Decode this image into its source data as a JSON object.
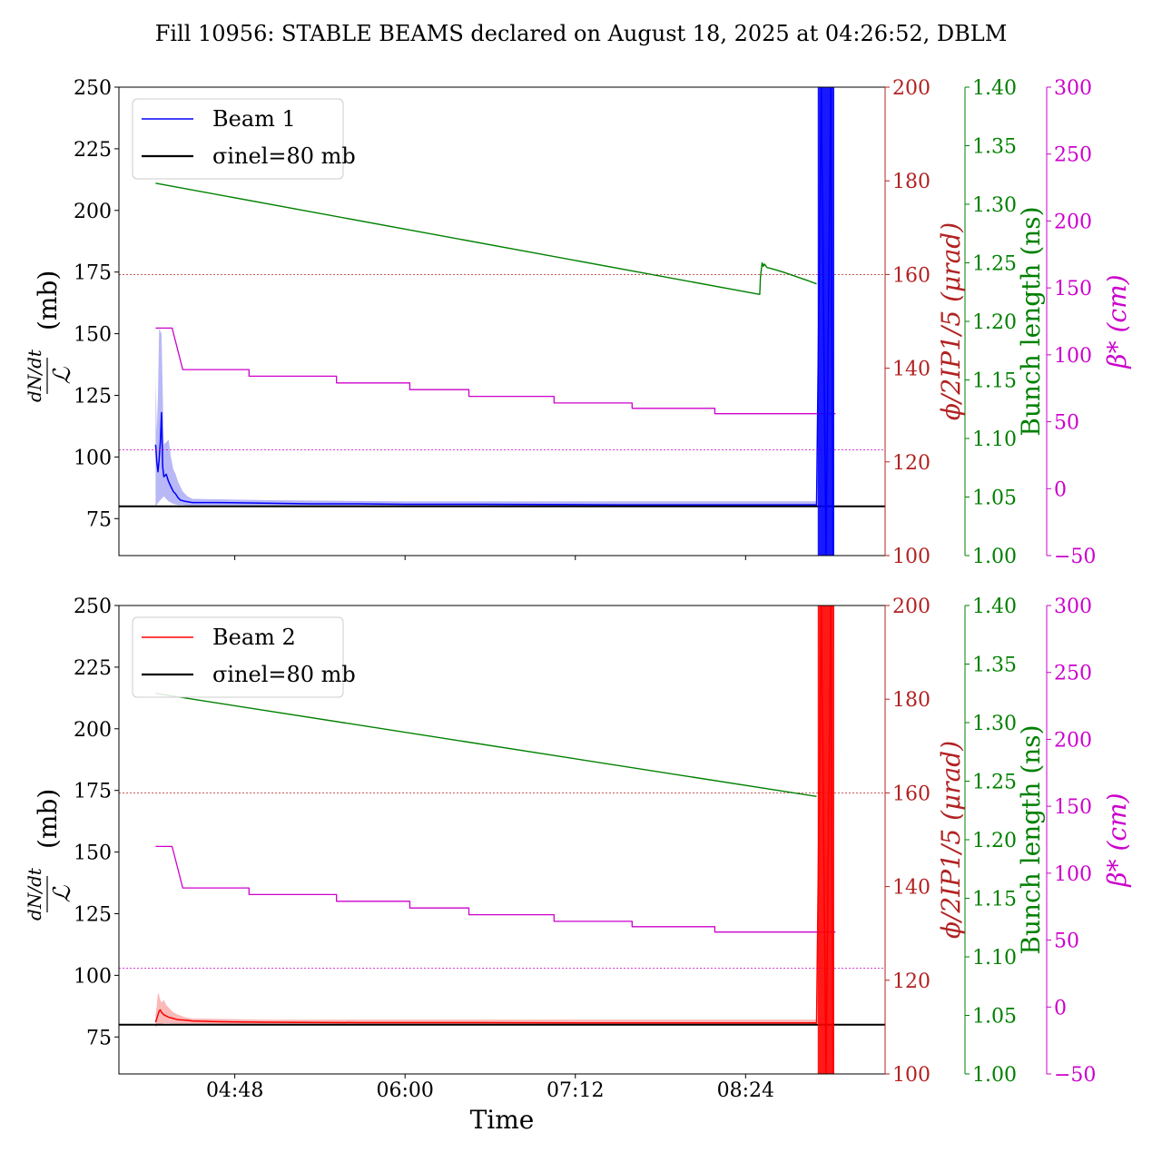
{
  "title": "Fill 10956: STABLE BEAMS declared on August 18, 2025 at 04:26:52, DBLM",
  "xlabel": "Time",
  "x_ticks": [
    "04:48",
    "06:00",
    "07:12",
    "08:24"
  ],
  "colors": {
    "beam1": "#0000ff",
    "beam1_band": "#a6a6f5",
    "beam2": "#ff0000",
    "beam2_band": "#f7a8a8",
    "crossing": "#b22222",
    "bunch": "#008000",
    "beta": "#cc00cc",
    "sigma": "#000000"
  },
  "panels": [
    {
      "beam": "beam1",
      "legend": [
        "Beam 1",
        "σinel=80 mb"
      ],
      "axis_labels": {
        "left_top": "dN/dt",
        "left_bottom": "ℒ",
        "left_unit": "(mb)",
        "crossing": "ϕ/2IP1/5 (μrad)",
        "bunch": "Bunch length (ns)",
        "beta": "β* (cm)"
      },
      "ticks": {
        "left": [
          "75",
          "100",
          "125",
          "150",
          "175",
          "200",
          "225",
          "250"
        ],
        "crossing": [
          "100",
          "120",
          "140",
          "160",
          "180",
          "200"
        ],
        "bunch": [
          "1.00",
          "1.05",
          "1.10",
          "1.15",
          "1.20",
          "1.25",
          "1.30",
          "1.35",
          "1.40"
        ],
        "beta": [
          "−50",
          "0",
          "50",
          "100",
          "150",
          "200",
          "250",
          "300"
        ]
      }
    },
    {
      "beam": "beam2",
      "legend": [
        "Beam 2",
        "σinel=80 mb"
      ],
      "axis_labels": {
        "left_top": "dN/dt",
        "left_bottom": "ℒ",
        "left_unit": "(mb)",
        "crossing": "ϕ/2IP1/5 (μrad)",
        "bunch": "Bunch length (ns)",
        "beta": "β* (cm)"
      },
      "ticks": {
        "left": [
          "75",
          "100",
          "125",
          "150",
          "175",
          "200",
          "225",
          "250"
        ],
        "crossing": [
          "100",
          "120",
          "140",
          "160",
          "180",
          "200"
        ],
        "bunch": [
          "1.00",
          "1.05",
          "1.10",
          "1.15",
          "1.20",
          "1.25",
          "1.30",
          "1.35",
          "1.40"
        ],
        "beta": [
          "−50",
          "0",
          "50",
          "100",
          "150",
          "200",
          "250",
          "300"
        ]
      }
    }
  ],
  "chart_data": [
    {
      "type": "line",
      "panel": "top",
      "x_unit": "minutes since 04:00",
      "xlim": [
        -1,
        323
      ],
      "x_ticks": [
        48,
        120,
        192,
        264
      ],
      "y_axes": {
        "xsec_mb": {
          "range": [
            60,
            250
          ],
          "ticks": [
            75,
            100,
            125,
            150,
            175,
            200,
            225,
            250
          ]
        },
        "crossing_urad": {
          "range": [
            100,
            200
          ],
          "ticks": [
            100,
            120,
            140,
            160,
            180,
            200
          ]
        },
        "bunch_ns": {
          "range": [
            1.0,
            1.4
          ],
          "ticks": [
            1.0,
            1.05,
            1.1,
            1.15,
            1.2,
            1.25,
            1.3,
            1.35,
            1.4
          ]
        },
        "beta_cm": {
          "range": [
            -50,
            300
          ],
          "ticks": [
            -50,
            0,
            50,
            100,
            150,
            200,
            250,
            300
          ]
        }
      },
      "series": [
        {
          "name": "Beam 1",
          "axis": "xsec_mb",
          "x": [
            14.5,
            15,
            15.5,
            16,
            16.5,
            17,
            17.5,
            18,
            19,
            20,
            21,
            22,
            23,
            24,
            25,
            27,
            30,
            40,
            60,
            80,
            100,
            120,
            150,
            180,
            210,
            240,
            270,
            294,
            296,
            298,
            300,
            301
          ],
          "y": [
            105,
            98,
            94,
            99,
            106,
            118,
            96,
            92,
            93,
            90,
            88,
            86,
            85,
            83.5,
            82.5,
            82,
            81.5,
            81.5,
            81.3,
            81,
            81,
            80.8,
            80.8,
            80.7,
            80.6,
            80.6,
            80.6,
            80.6,
            250,
            60,
            250,
            60
          ]
        },
        {
          "name": "Beam 1 band low",
          "axis": "xsec_mb",
          "x": [
            14.5,
            16,
            18,
            20,
            22,
            24,
            26,
            28,
            30,
            60,
            120,
            200,
            294
          ],
          "y": [
            80,
            82,
            84,
            82,
            81,
            80.5,
            80.5,
            80.3,
            80.3,
            80.2,
            80.1,
            80.1,
            80.1
          ]
        },
        {
          "name": "Beam 1 band high",
          "axis": "xsec_mb",
          "x": [
            14.5,
            15,
            15.5,
            16,
            17,
            18,
            19,
            20,
            21,
            22,
            23,
            24,
            26,
            28,
            30,
            60,
            120,
            200,
            294
          ],
          "y": [
            132,
            110,
            125,
            152,
            150,
            105,
            106,
            107,
            100,
            95,
            93,
            90,
            86,
            84,
            83,
            82.5,
            82,
            82,
            82
          ]
        },
        {
          "name": "σinel=80 mb",
          "axis": "xsec_mb",
          "x": [
            -1,
            323
          ],
          "y": [
            80,
            80
          ]
        },
        {
          "name": "Crossing angle reference",
          "axis": "crossing_urad",
          "x": [
            -1,
            323
          ],
          "y": [
            160,
            160
          ]
        },
        {
          "name": "Bunch length",
          "axis": "bunch_ns",
          "x": [
            14.5,
            270,
            270.3,
            271,
            271.5,
            272,
            273,
            275,
            280,
            290,
            294
          ],
          "y": [
            1.318,
            1.223,
            1.238,
            1.25,
            1.247,
            1.249,
            1.246,
            1.245,
            1.242,
            1.235,
            1.232
          ]
        },
        {
          "name": "β*",
          "axis": "beta_cm",
          "x": [
            14.5,
            21.5,
            26,
            54,
            54,
            91,
            91,
            122,
            122,
            147,
            147,
            183,
            183,
            216,
            216,
            251,
            251,
            302
          ],
          "y": [
            120,
            120,
            89,
            89,
            84,
            84,
            79,
            79,
            74,
            74,
            69,
            69,
            64,
            64,
            60,
            60,
            56,
            56
          ]
        },
        {
          "name": "β* reference",
          "axis": "beta_cm",
          "x": [
            -1,
            323
          ],
          "y": [
            29,
            29
          ]
        }
      ]
    },
    {
      "type": "line",
      "panel": "bottom",
      "x_unit": "minutes since 04:00",
      "xlim": [
        -1,
        323
      ],
      "x_ticks": [
        48,
        120,
        192,
        264
      ],
      "y_axes": {
        "xsec_mb": {
          "range": [
            60,
            250
          ],
          "ticks": [
            75,
            100,
            125,
            150,
            175,
            200,
            225,
            250
          ]
        },
        "crossing_urad": {
          "range": [
            100,
            200
          ],
          "ticks": [
            100,
            120,
            140,
            160,
            180,
            200
          ]
        },
        "bunch_ns": {
          "range": [
            1.0,
            1.4
          ],
          "ticks": [
            1.0,
            1.05,
            1.1,
            1.15,
            1.2,
            1.25,
            1.3,
            1.35,
            1.4
          ]
        },
        "beta_cm": {
          "range": [
            -50,
            300
          ],
          "ticks": [
            -50,
            0,
            50,
            100,
            150,
            200,
            250,
            300
          ]
        }
      },
      "series": [
        {
          "name": "Beam 2",
          "axis": "xsec_mb",
          "x": [
            14.5,
            15,
            15.5,
            16,
            16.5,
            17,
            18,
            19,
            20,
            22,
            24,
            27,
            30,
            40,
            60,
            100,
            150,
            200,
            250,
            294,
            296,
            298,
            300,
            301
          ],
          "y": [
            81,
            82.5,
            84,
            85.5,
            86,
            85,
            84,
            83.5,
            83,
            82.5,
            82,
            81.8,
            81.5,
            81.2,
            81,
            80.8,
            80.8,
            80.7,
            80.7,
            80.7,
            250,
            60,
            250,
            60
          ]
        },
        {
          "name": "Beam 2 band low",
          "axis": "xsec_mb",
          "x": [
            14.5,
            16,
            18,
            20,
            24,
            30,
            60,
            150,
            294
          ],
          "y": [
            79,
            80,
            80.5,
            80.5,
            80.3,
            80.3,
            80.2,
            80.2,
            80.2
          ]
        },
        {
          "name": "Beam 2 band high",
          "axis": "xsec_mb",
          "x": [
            14.5,
            15,
            15.5,
            16,
            16.5,
            17,
            18,
            19,
            20,
            22,
            24,
            27,
            30,
            60,
            150,
            294
          ],
          "y": [
            84,
            88,
            93,
            92,
            90,
            89,
            90,
            88,
            87,
            85,
            84,
            83,
            82.5,
            82,
            82,
            82
          ]
        },
        {
          "name": "σinel=80 mb",
          "axis": "xsec_mb",
          "x": [
            -1,
            323
          ],
          "y": [
            80,
            80
          ]
        },
        {
          "name": "Crossing angle reference",
          "axis": "crossing_urad",
          "x": [
            -1,
            323
          ],
          "y": [
            160,
            160
          ]
        },
        {
          "name": "Bunch length",
          "axis": "bunch_ns",
          "x": [
            14.5,
            294
          ],
          "y": [
            1.325,
            1.237
          ]
        },
        {
          "name": "β*",
          "axis": "beta_cm",
          "x": [
            14.5,
            21.5,
            26,
            54,
            54,
            91,
            91,
            122,
            122,
            147,
            147,
            183,
            183,
            216,
            216,
            251,
            251,
            302
          ],
          "y": [
            120,
            120,
            89,
            89,
            84,
            84,
            79,
            79,
            74,
            74,
            69,
            69,
            64,
            64,
            60,
            60,
            56,
            56
          ]
        },
        {
          "name": "β* reference",
          "axis": "beta_cm",
          "x": [
            -1,
            323
          ],
          "y": [
            29,
            29
          ]
        }
      ]
    }
  ]
}
